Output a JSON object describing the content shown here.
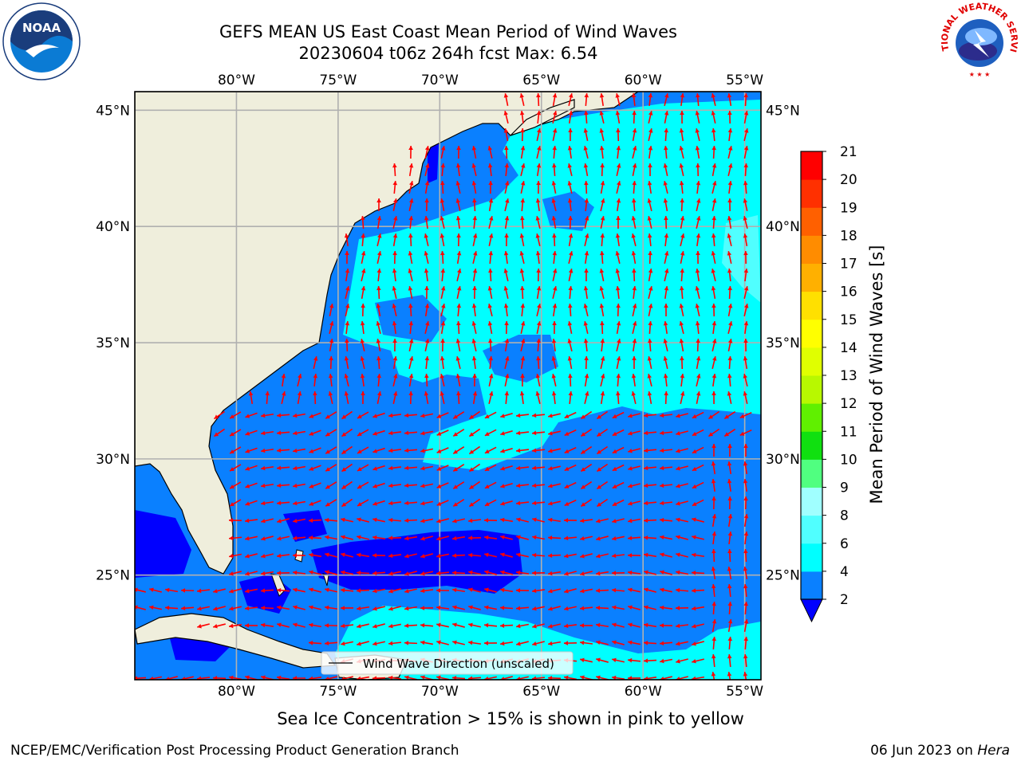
{
  "title": {
    "line1": "GEFS MEAN US East Coast Mean Period of Wind Waves",
    "line2": "20230604 t06z 264h fcst   Max: 6.54"
  },
  "logos": {
    "left": {
      "text": "NOAA",
      "icon": "noaa-logo-icon"
    },
    "right": {
      "text": "NATIONAL WEATHER SERVICE",
      "icon": "nws-logo-icon"
    }
  },
  "map": {
    "lon_ticks": [
      "80°W",
      "75°W",
      "70°W",
      "65°W",
      "60°W",
      "55°W"
    ],
    "lat_ticks": [
      "45°N",
      "40°N",
      "35°N",
      "30°N",
      "25°N"
    ],
    "lon_values": [
      -80,
      -75,
      -70,
      -65,
      -60,
      -55
    ],
    "lat_values": [
      45,
      40,
      35,
      30,
      25
    ],
    "lon_range": [
      -85,
      -54.2
    ],
    "lat_range": [
      20.5,
      45.8
    ],
    "land_color": "#efeedc",
    "grid_color": "#b0b0b0",
    "arrow_color": "#ff0000",
    "legend_label": "Wind Wave Direction (unscaled)"
  },
  "colorbar": {
    "label": "Mean Period of Wind Waves [s]",
    "ticks": [
      "2",
      "4",
      "6",
      "8",
      "9",
      "10",
      "11",
      "12",
      "13",
      "14",
      "15",
      "16",
      "17",
      "18",
      "19",
      "20",
      "21"
    ],
    "colors": [
      "#0a80ff",
      "#00ffff",
      "#50ffff",
      "#a0ffff",
      "#50ff80",
      "#10e010",
      "#60f000",
      "#b8f800",
      "#e0ff00",
      "#ffff00",
      "#ffe000",
      "#ffb000",
      "#ff8c00",
      "#ff6000",
      "#ff3000",
      "#ff0000"
    ],
    "under_color": "#0000ff"
  },
  "subtitle": "Sea Ice Concentration > 15% is shown in pink to yellow",
  "footer": {
    "left": "NCEP/EMC/Verification Post Processing Product Generation Branch",
    "right_date": "06 Jun 2023 on ",
    "right_host": "Hera"
  }
}
